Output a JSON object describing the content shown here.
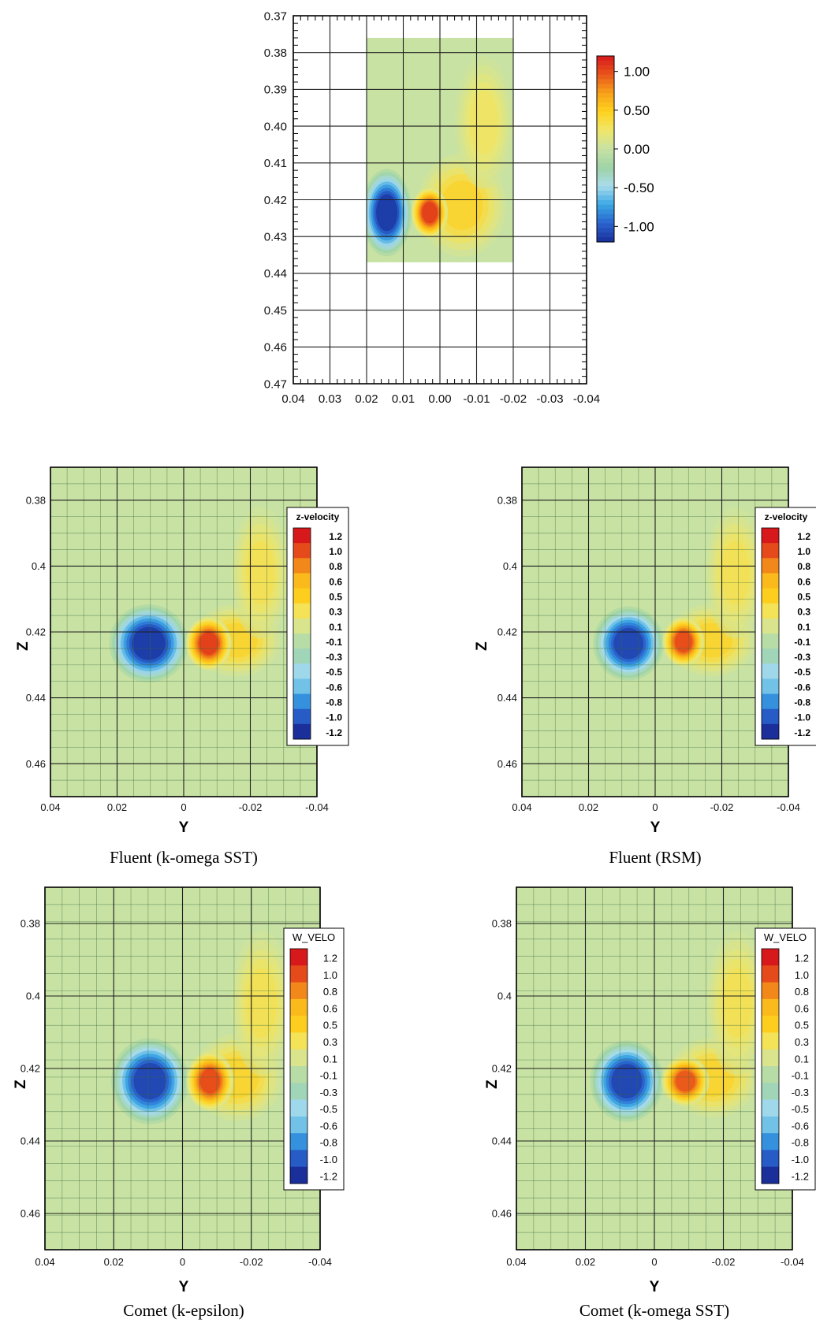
{
  "colorscale": {
    "stops": [
      "#1a2f9a",
      "#2a64cf",
      "#3aa7e4",
      "#a9dcec",
      "#9ed3a6",
      "#c8e2a4",
      "#f0e76a",
      "#ffd21e",
      "#f7a11a",
      "#e8541b",
      "#d7191c"
    ]
  },
  "chart_data": [
    {
      "type": "heatmap",
      "id": "experiment",
      "title": "",
      "xlabel": "",
      "ylabel": "",
      "xlim": [
        0.04,
        -0.04
      ],
      "ylim": [
        0.37,
        0.47
      ],
      "x_ticks": [
        "0.04",
        "0.03",
        "0.02",
        "0.01",
        "0.00",
        "-0.01",
        "-0.02",
        "-0.03",
        "-0.04"
      ],
      "x_tick_values": [
        0.04,
        0.03,
        0.02,
        0.01,
        0.0,
        -0.01,
        -0.02,
        -0.03,
        -0.04
      ],
      "y_ticks": [
        "0.37",
        "0.38",
        "0.39",
        "0.40",
        "0.41",
        "0.42",
        "0.43",
        "0.44",
        "0.45",
        "0.46",
        "0.47"
      ],
      "y_tick_values": [
        0.37,
        0.38,
        0.39,
        0.4,
        0.41,
        0.42,
        0.43,
        0.44,
        0.45,
        0.46,
        0.47
      ],
      "data_extent": {
        "y": [
          0.02,
          -0.02
        ],
        "z": [
          0.376,
          0.437
        ]
      },
      "grid": true,
      "colorbar_title": "",
      "colorbar_labels": [
        "1.00",
        "0.50",
        "0.00",
        "-0.50",
        "-1.00"
      ],
      "colorbar_range": [
        -1.2,
        1.2
      ],
      "features": [
        {
          "kind": "vortex",
          "y": 0.0145,
          "z": 0.4235,
          "ry": 0.0055,
          "rz": 0.0095,
          "value": -1.15
        },
        {
          "kind": "vortex",
          "y": 0.0028,
          "z": 0.4235,
          "ry": 0.004,
          "rz": 0.0055,
          "value": 1.05
        },
        {
          "kind": "wake",
          "y": -0.006,
          "z": 0.4215,
          "ry": 0.012,
          "rz": 0.014,
          "value": 0.5
        },
        {
          "kind": "wake",
          "y": -0.012,
          "z": 0.399,
          "ry": 0.008,
          "rz": 0.018,
          "value": 0.3
        }
      ],
      "caption": ""
    },
    {
      "type": "heatmap",
      "id": "fluent-sst",
      "title": "",
      "xlabel": "Y",
      "ylabel": "Z",
      "xlim": [
        0.04,
        -0.04
      ],
      "ylim": [
        0.37,
        0.47
      ],
      "x_ticks": [
        "0.04",
        "0.02",
        "0",
        "-0.02",
        "-0.04"
      ],
      "x_tick_values": [
        0.04,
        0.02,
        0,
        -0.02,
        -0.04
      ],
      "y_ticks": [
        "0.38",
        "0.4",
        "0.42",
        "0.44",
        "0.46"
      ],
      "y_tick_values": [
        0.38,
        0.4,
        0.42,
        0.44,
        0.46
      ],
      "grid": true,
      "colorbar_title": "z-velocity",
      "colorbar_labels": [
        "1.2",
        "1.0",
        "0.8",
        "0.6",
        "0.5",
        "0.3",
        "0.1",
        "-0.1",
        "-0.3",
        "-0.5",
        "-0.6",
        "-0.8",
        "-1.0",
        "-1.2"
      ],
      "colorbar_range": [
        -1.2,
        1.2
      ],
      "features": [
        {
          "kind": "vortex",
          "y": 0.0105,
          "z": 0.4235,
          "ry": 0.0095,
          "rz": 0.0095,
          "value": -1.15
        },
        {
          "kind": "vortex",
          "y": -0.0075,
          "z": 0.4235,
          "ry": 0.0055,
          "rz": 0.0065,
          "value": 1.05
        },
        {
          "kind": "wake",
          "y": -0.016,
          "z": 0.4225,
          "ry": 0.013,
          "rz": 0.011,
          "value": 0.5
        },
        {
          "kind": "wake",
          "y": -0.023,
          "z": 0.402,
          "ry": 0.009,
          "rz": 0.02,
          "value": 0.35
        }
      ],
      "caption": "Fluent (k-omega SST)"
    },
    {
      "type": "heatmap",
      "id": "fluent-rsm",
      "title": "",
      "xlabel": "Y",
      "ylabel": "Z",
      "xlim": [
        0.04,
        -0.04
      ],
      "ylim": [
        0.37,
        0.47
      ],
      "x_ticks": [
        "0.04",
        "0.02",
        "0",
        "-0.02",
        "-0.04"
      ],
      "x_tick_values": [
        0.04,
        0.02,
        0,
        -0.02,
        -0.04
      ],
      "y_ticks": [
        "0.38",
        "0.4",
        "0.42",
        "0.44",
        "0.46"
      ],
      "y_tick_values": [
        0.38,
        0.4,
        0.42,
        0.44,
        0.46
      ],
      "grid": true,
      "colorbar_title": "z-velocity",
      "colorbar_labels": [
        "1.2",
        "1.0",
        "0.8",
        "0.6",
        "0.5",
        "0.3",
        "0.1",
        "-0.1",
        "-0.3",
        "-0.5",
        "-0.6",
        "-0.8",
        "-1.0",
        "-1.2"
      ],
      "colorbar_range": [
        -1.2,
        1.2
      ],
      "features": [
        {
          "kind": "vortex",
          "y": 0.008,
          "z": 0.4235,
          "ry": 0.0085,
          "rz": 0.009,
          "value": -1.1
        },
        {
          "kind": "vortex",
          "y": -0.0085,
          "z": 0.423,
          "ry": 0.005,
          "rz": 0.006,
          "value": 1.0
        },
        {
          "kind": "wake",
          "y": -0.017,
          "z": 0.4225,
          "ry": 0.013,
          "rz": 0.011,
          "value": 0.5
        },
        {
          "kind": "wake",
          "y": -0.024,
          "z": 0.402,
          "ry": 0.009,
          "rz": 0.02,
          "value": 0.35
        }
      ],
      "caption": "Fluent (RSM)"
    },
    {
      "type": "heatmap",
      "id": "comet-ke",
      "title": "",
      "xlabel": "Y",
      "ylabel": "Z",
      "xlim": [
        0.04,
        -0.04
      ],
      "ylim": [
        0.37,
        0.47
      ],
      "x_ticks": [
        "0.04",
        "0.02",
        "0",
        "-0.02",
        "-0.04"
      ],
      "x_tick_values": [
        0.04,
        0.02,
        0,
        -0.02,
        -0.04
      ],
      "y_ticks": [
        "0.38",
        "0.4",
        "0.42",
        "0.44",
        "0.46"
      ],
      "y_tick_values": [
        0.38,
        0.4,
        0.42,
        0.44,
        0.46
      ],
      "grid": true,
      "colorbar_title": "W_VELO",
      "colorbar_labels": [
        "1.2",
        "1.0",
        "0.8",
        "0.6",
        "0.5",
        "0.3",
        "0.1",
        "-0.1",
        "-0.3",
        "-0.5",
        "-0.6",
        "-0.8",
        "-1.0",
        "-1.2"
      ],
      "colorbar_range": [
        -1.2,
        1.2
      ],
      "features": [
        {
          "kind": "vortex",
          "y": 0.0095,
          "z": 0.4235,
          "ry": 0.009,
          "rz": 0.0095,
          "value": -1.1
        },
        {
          "kind": "vortex",
          "y": -0.008,
          "z": 0.4235,
          "ry": 0.0055,
          "rz": 0.0065,
          "value": 1.0
        },
        {
          "kind": "wake",
          "y": -0.016,
          "z": 0.4225,
          "ry": 0.013,
          "rz": 0.012,
          "value": 0.5
        },
        {
          "kind": "wake",
          "y": -0.023,
          "z": 0.402,
          "ry": 0.009,
          "rz": 0.02,
          "value": 0.35
        }
      ],
      "caption": "Comet (k-epsilon)"
    },
    {
      "type": "heatmap",
      "id": "comet-sst",
      "title": "",
      "xlabel": "Y",
      "ylabel": "Z",
      "xlim": [
        0.04,
        -0.04
      ],
      "ylim": [
        0.37,
        0.47
      ],
      "x_ticks": [
        "0.04",
        "0.02",
        "0",
        "-0.02",
        "-0.04"
      ],
      "x_tick_values": [
        0.04,
        0.02,
        0,
        -0.02,
        -0.04
      ],
      "y_ticks": [
        "0.38",
        "0.4",
        "0.42",
        "0.44",
        "0.46"
      ],
      "y_tick_values": [
        0.38,
        0.4,
        0.42,
        0.44,
        0.46
      ],
      "grid": true,
      "colorbar_title": "W_VELO",
      "colorbar_labels": [
        "1.2",
        "1.0",
        "0.8",
        "0.6",
        "0.5",
        "0.3",
        "0.1",
        "-0.1",
        "-0.3",
        "-0.5",
        "-0.6",
        "-0.8",
        "-1.0",
        "-1.2"
      ],
      "colorbar_range": [
        -1.2,
        1.2
      ],
      "features": [
        {
          "kind": "vortex",
          "y": 0.008,
          "z": 0.4235,
          "ry": 0.0085,
          "rz": 0.009,
          "value": -1.1
        },
        {
          "kind": "vortex",
          "y": -0.009,
          "z": 0.4235,
          "ry": 0.0055,
          "rz": 0.0055,
          "value": 0.95
        },
        {
          "kind": "wake",
          "y": -0.017,
          "z": 0.4225,
          "ry": 0.013,
          "rz": 0.011,
          "value": 0.5
        },
        {
          "kind": "wake",
          "y": -0.024,
          "z": 0.402,
          "ry": 0.009,
          "rz": 0.02,
          "value": 0.35
        }
      ],
      "caption": "Comet (k-omega SST)"
    }
  ]
}
